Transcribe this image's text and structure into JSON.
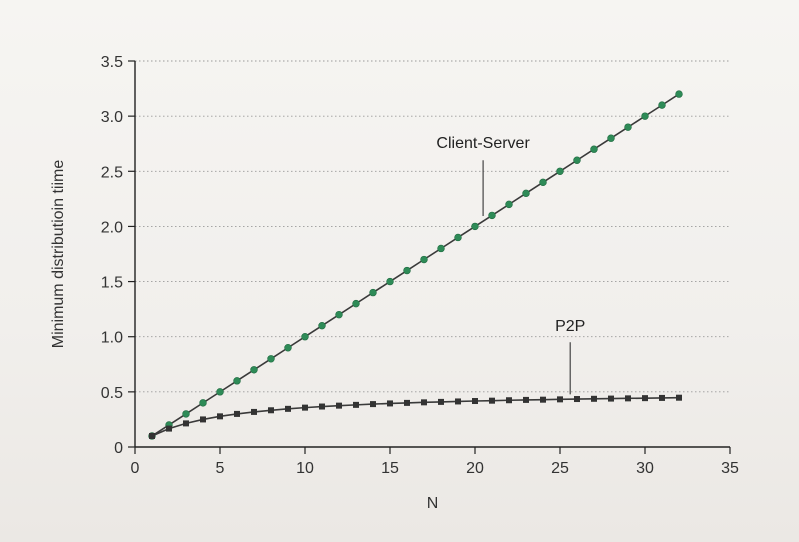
{
  "chart_data": {
    "type": "line",
    "xlabel": "N",
    "ylabel": "Minimum distributioin tiime",
    "xlim": [
      0,
      35
    ],
    "ylim": [
      0,
      3.5
    ],
    "xticks": [
      0,
      5,
      10,
      15,
      20,
      25,
      30,
      35
    ],
    "yticks": [
      0,
      0.5,
      1.0,
      1.5,
      2.0,
      2.5,
      3.0,
      3.5
    ],
    "xtick_labels": [
      "0",
      "5",
      "10",
      "15",
      "20",
      "25",
      "30",
      "35"
    ],
    "ytick_labels": [
      "0",
      "0.5",
      "1.0",
      "1.5",
      "2.0",
      "2.5",
      "3.0",
      "3.5"
    ],
    "grid": "horizontal dotted",
    "x": [
      1,
      2,
      3,
      4,
      5,
      6,
      7,
      8,
      9,
      10,
      11,
      12,
      13,
      14,
      15,
      16,
      17,
      18,
      19,
      20,
      21,
      22,
      23,
      24,
      25,
      26,
      27,
      28,
      29,
      30,
      31,
      32
    ],
    "series": [
      {
        "name": "Client-Server",
        "color": "#2e8b57",
        "marker": "circle",
        "values": [
          0.1,
          0.2,
          0.3,
          0.4,
          0.5,
          0.6,
          0.7,
          0.8,
          0.9,
          1.0,
          1.1,
          1.2,
          1.3,
          1.4,
          1.5,
          1.6,
          1.7,
          1.8,
          1.9,
          2.0,
          2.1,
          2.2,
          2.3,
          2.4,
          2.5,
          2.6,
          2.7,
          2.8,
          2.9,
          3.0,
          3.1,
          3.2
        ]
      },
      {
        "name": "P2P",
        "color": "#333333",
        "marker": "square",
        "values": [
          0.1,
          0.167,
          0.214,
          0.25,
          0.278,
          0.3,
          0.318,
          0.333,
          0.346,
          0.357,
          0.367,
          0.375,
          0.382,
          0.389,
          0.395,
          0.4,
          0.405,
          0.409,
          0.413,
          0.417,
          0.42,
          0.424,
          0.427,
          0.429,
          0.432,
          0.435,
          0.437,
          0.439,
          0.441,
          0.443,
          0.445,
          0.447
        ]
      }
    ],
    "p2p_values_note": ""
  }
}
